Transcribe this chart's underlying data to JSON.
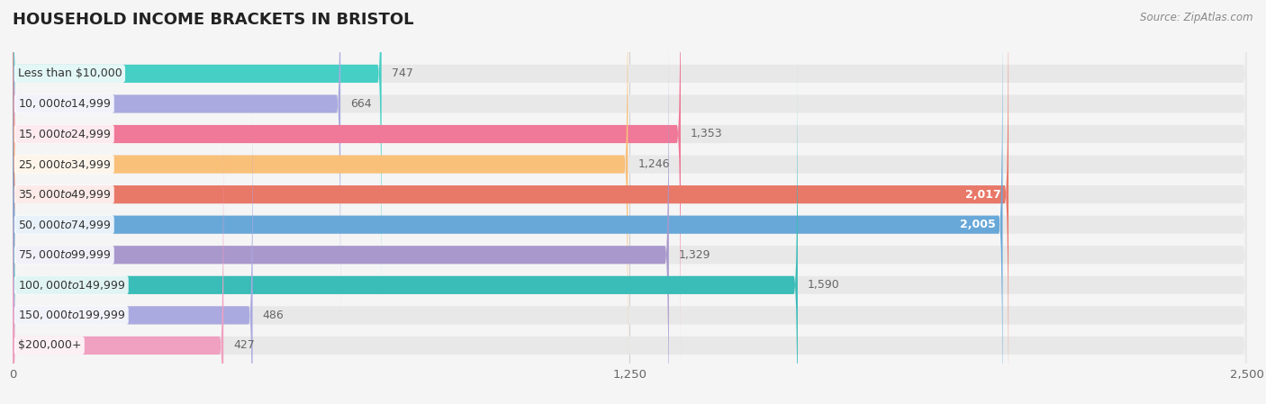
{
  "title": "HOUSEHOLD INCOME BRACKETS IN BRISTOL",
  "source": "Source: ZipAtlas.com",
  "categories": [
    "Less than $10,000",
    "$10,000 to $14,999",
    "$15,000 to $24,999",
    "$25,000 to $34,999",
    "$35,000 to $49,999",
    "$50,000 to $74,999",
    "$75,000 to $99,999",
    "$100,000 to $149,999",
    "$150,000 to $199,999",
    "$200,000+"
  ],
  "values": [
    747,
    664,
    1353,
    1246,
    2017,
    2005,
    1329,
    1590,
    486,
    427
  ],
  "bar_colors": [
    "#45cfc5",
    "#aaaae0",
    "#f07898",
    "#f9c07a",
    "#e87868",
    "#68a8d8",
    "#a898cc",
    "#3abcb8",
    "#aaaae0",
    "#f0a0c0"
  ],
  "bar_bg_color": "#e8e8e8",
  "xlim": [
    0,
    2500
  ],
  "xticks": [
    0,
    1250,
    2500
  ],
  "background_color": "#f5f5f5",
  "title_fontsize": 13,
  "label_fontsize": 9,
  "value_fontsize": 9,
  "value_inside_color": "#ffffff",
  "value_outside_color": "#666666",
  "inside_threshold": 2000
}
